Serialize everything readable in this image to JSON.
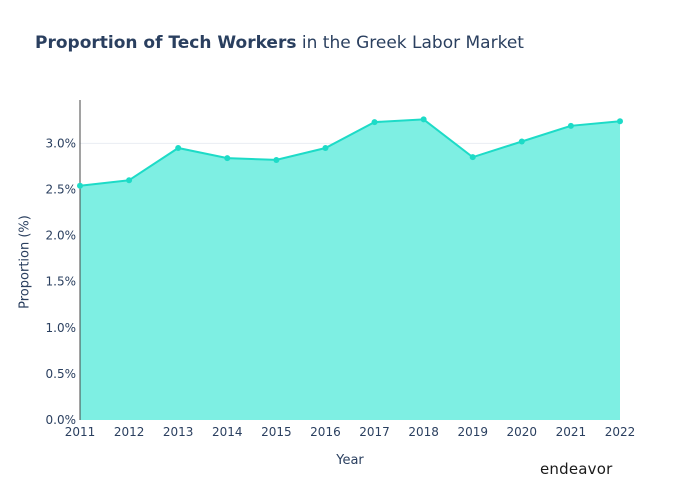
{
  "title": {
    "bold": "Proportion of Tech Workers",
    "rest": "in the Greek Labor Market"
  },
  "logo": "endeavor",
  "colors": {
    "line": "#1ddbc7",
    "fill": "#7eefe3",
    "grid": "#e9edf2",
    "text": "#2a3f5f"
  },
  "chart_data": {
    "type": "area",
    "title": "Proportion of Tech Workers in the Greek Labor Market",
    "xlabel": "Year",
    "ylabel": "Proportion (%)",
    "x": [
      2011,
      2012,
      2013,
      2014,
      2015,
      2016,
      2017,
      2018,
      2019,
      2020,
      2021,
      2022
    ],
    "values": [
      2.54,
      2.6,
      2.95,
      2.84,
      2.82,
      2.95,
      3.23,
      3.26,
      2.85,
      3.02,
      3.19,
      3.24
    ],
    "ylim": [
      0,
      3.47
    ],
    "y_ticks": [
      0,
      0.5,
      1.0,
      1.5,
      2.0,
      2.5,
      3.0
    ],
    "y_tick_labels": [
      "0.0%",
      "0.5%",
      "1.0%",
      "1.5%",
      "2.0%",
      "2.5%",
      "3.0%"
    ],
    "x_tick_labels": [
      "2011",
      "2012",
      "2013",
      "2014",
      "2015",
      "2016",
      "2017",
      "2018",
      "2019",
      "2020",
      "2021",
      "2022"
    ],
    "grid": true,
    "legend": "none"
  }
}
